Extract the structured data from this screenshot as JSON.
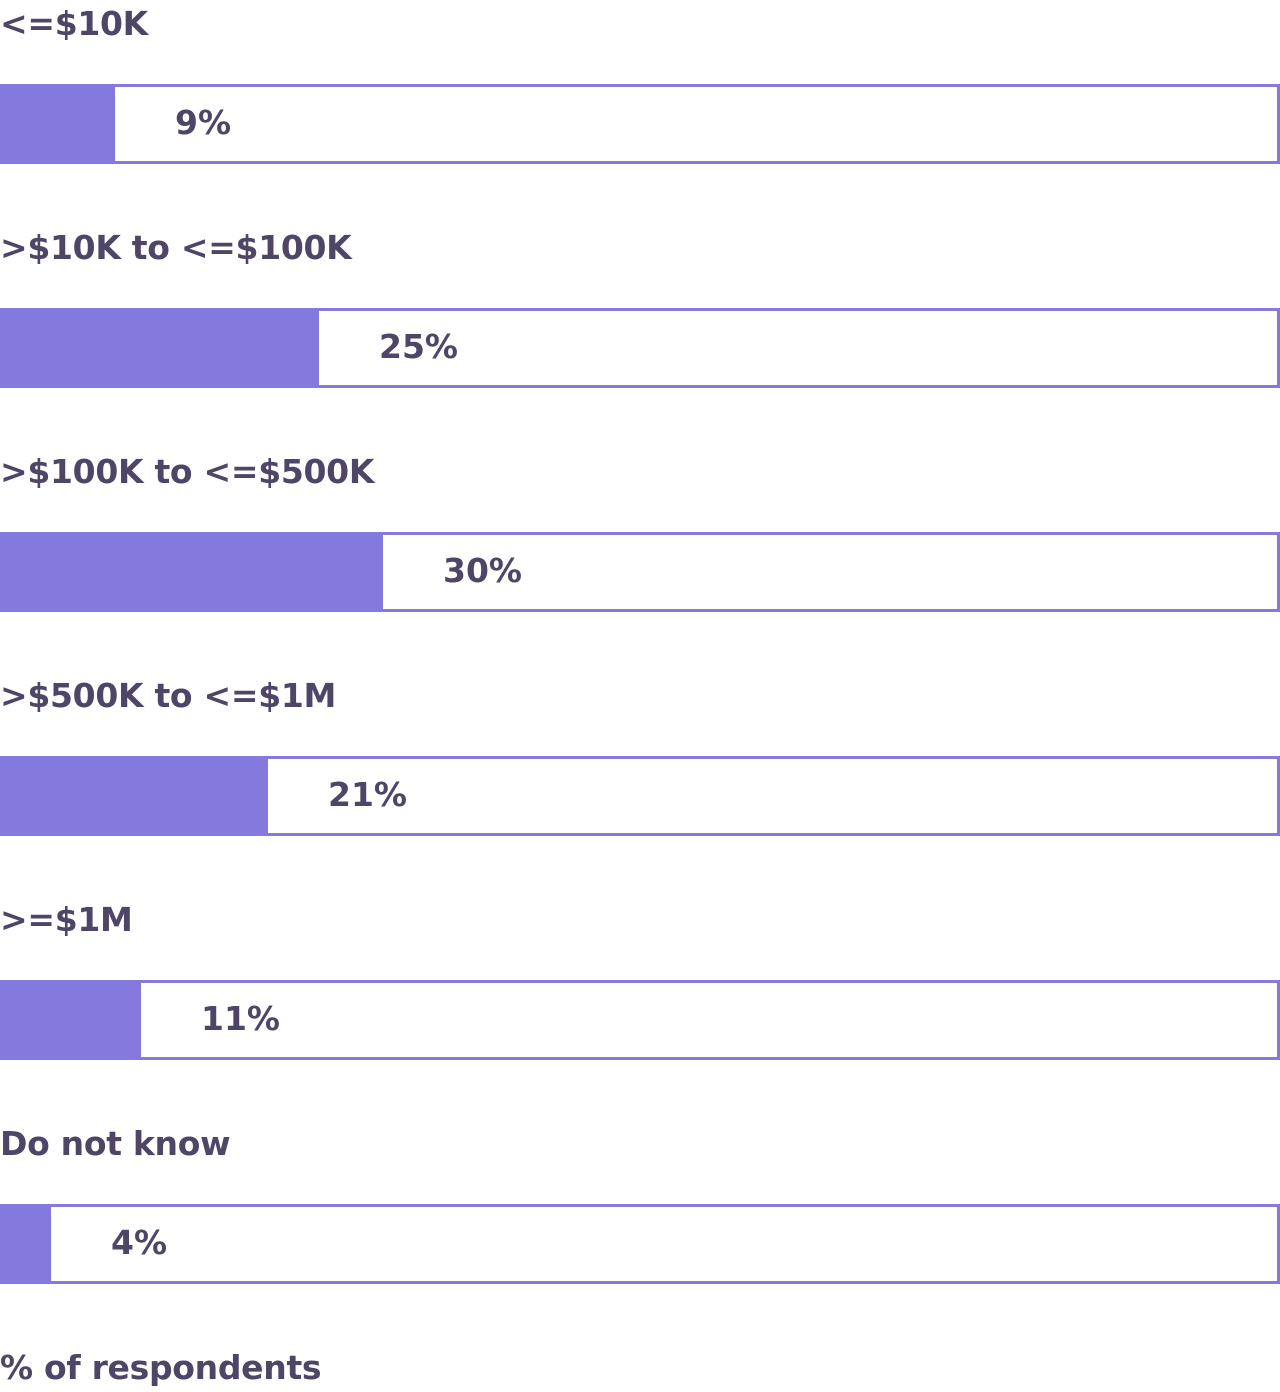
{
  "chart_data": {
    "type": "bar",
    "orientation": "horizontal",
    "categories": [
      "<=$10K",
      ">$10K to <=$100K",
      ">$100K to <=$500K",
      ">$500K to <=$1M",
      ">=$1M",
      "Do not know"
    ],
    "values": [
      9,
      25,
      30,
      21,
      11,
      4
    ],
    "value_labels": [
      "9%",
      "25%",
      "30%",
      "21%",
      "11%",
      "4%"
    ],
    "xlabel": "% of respondents",
    "colors": {
      "bar": "#8679dd",
      "text": "#4f4566",
      "track": "#ffffff"
    }
  }
}
